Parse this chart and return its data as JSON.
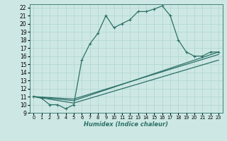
{
  "xlabel": "Humidex (Indice chaleur)",
  "ylabel": "",
  "bg_color": "#cde8e4",
  "grid_color": "#b0d5d0",
  "line_color": "#2d7068",
  "xlim": [
    -0.5,
    23.5
  ],
  "ylim": [
    9,
    22.4
  ],
  "xtick_labels": [
    "0",
    "1",
    "2",
    "3",
    "4",
    "5",
    "6",
    "7",
    "8",
    "9",
    "10",
    "11",
    "12",
    "13",
    "14",
    "15",
    "16",
    "17",
    "18",
    "19",
    "20",
    "21",
    "22",
    "23"
  ],
  "ytick_labels": [
    "9",
    "10",
    "11",
    "12",
    "13",
    "14",
    "15",
    "16",
    "17",
    "18",
    "19",
    "20",
    "21",
    "22"
  ],
  "xtick_vals": [
    0,
    1,
    2,
    3,
    4,
    5,
    6,
    7,
    8,
    9,
    10,
    11,
    12,
    13,
    14,
    15,
    16,
    17,
    18,
    19,
    20,
    21,
    22,
    23
  ],
  "ytick_vals": [
    9,
    10,
    11,
    12,
    13,
    14,
    15,
    16,
    17,
    18,
    19,
    20,
    21,
    22
  ],
  "curve_x": [
    0,
    1,
    2,
    3,
    4,
    5,
    6,
    7,
    8,
    9,
    10,
    11,
    12,
    13,
    14,
    15,
    16,
    17,
    18,
    19,
    20,
    21,
    22,
    23
  ],
  "curve_y": [
    11,
    10.8,
    10,
    10,
    9.5,
    10,
    15.5,
    17.5,
    18.8,
    21,
    19.5,
    20,
    20.5,
    21.5,
    21.5,
    21.8,
    22.2,
    21,
    18,
    16.5,
    16,
    16,
    16.5,
    16.5
  ],
  "line2_x": [
    0,
    5,
    23
  ],
  "line2_y": [
    11,
    10.5,
    16.5
  ],
  "line3_x": [
    0,
    5,
    23
  ],
  "line3_y": [
    11,
    10.7,
    16.2
  ],
  "line4_x": [
    0,
    5,
    23
  ],
  "line4_y": [
    11,
    10.2,
    15.5
  ]
}
